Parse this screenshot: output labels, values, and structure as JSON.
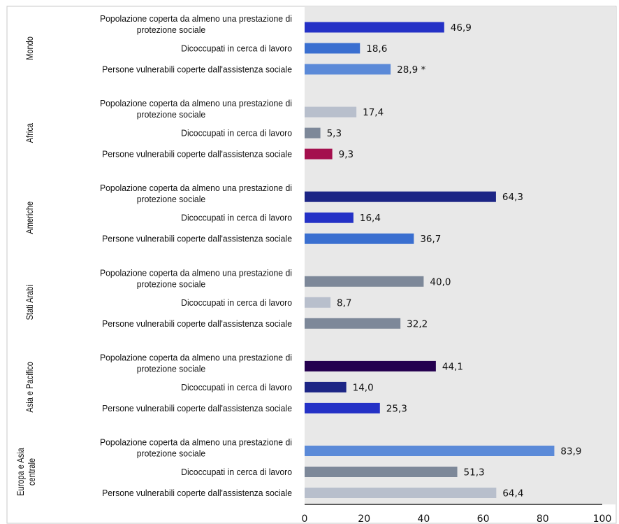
{
  "chart_data": {
    "type": "bar",
    "orientation": "horizontal",
    "xlim": [
      0,
      100
    ],
    "x_ticks": [
      "0",
      "20",
      "40",
      "60",
      "80",
      "100"
    ],
    "legend": "none",
    "grid": false,
    "groups": [
      {
        "name": "Mondo",
        "bars": [
          {
            "category": [
              "Popolazione coperta da almeno una prestazione di",
              "protezione sociale"
            ],
            "value": 46.9,
            "label": "46,9",
            "color": "#2431c6"
          },
          {
            "category": [
              "Dicoccupati in cerca di lavoro"
            ],
            "value": 18.6,
            "label": "18,6",
            "color": "#3a6fd0"
          },
          {
            "category": [
              "Persone vulnerabili coperte dall'assistenza sociale"
            ],
            "value": 28.9,
            "label": "28,9 *",
            "color": "#5b8ad8"
          }
        ]
      },
      {
        "name": "Africa",
        "bars": [
          {
            "category": [
              "Popolazione coperta da almeno una prestazione di",
              "protezione sociale"
            ],
            "value": 17.4,
            "label": "17,4",
            "color": "#b8bfcc"
          },
          {
            "category": [
              "Dicoccupati in cerca di lavoro"
            ],
            "value": 5.3,
            "label": "5,3",
            "color": "#7d8899"
          },
          {
            "category": [
              "Persone vulnerabili coperte dall'assistenza sociale"
            ],
            "value": 9.3,
            "label": "9,3",
            "color": "#a4104e"
          }
        ]
      },
      {
        "name": "Americhe",
        "bars": [
          {
            "category": [
              "Popolazione coperta da almeno una prestazione di",
              "protezione sociale"
            ],
            "value": 64.3,
            "label": "64,3",
            "color": "#1c2585"
          },
          {
            "category": [
              "Dicoccupati in cerca di lavoro"
            ],
            "value": 16.4,
            "label": "16,4",
            "color": "#2431c6"
          },
          {
            "category": [
              "Persone vulnerabili coperte dall'assistenza sociale"
            ],
            "value": 36.7,
            "label": "36,7",
            "color": "#3a6fd0"
          }
        ]
      },
      {
        "name": "Stati Arabi",
        "bars": [
          {
            "category": [
              "Popolazione coperta da almeno una prestazione di",
              "protezione sociale"
            ],
            "value": 40.0,
            "label": "40,0",
            "color": "#7d8899"
          },
          {
            "category": [
              "Dicoccupati in cerca di lavoro"
            ],
            "value": 8.7,
            "label": "8,7",
            "color": "#b8bfcc"
          },
          {
            "category": [
              "Persone vulnerabili coperte dall'assistenza sociale"
            ],
            "value": 32.2,
            "label": "32,2",
            "color": "#7d8899"
          }
        ]
      },
      {
        "name": "Asia e Pacifico",
        "bars": [
          {
            "category": [
              "Popolazione coperta da almeno una prestazione di",
              "protezione sociale"
            ],
            "value": 44.1,
            "label": "44,1",
            "color": "#24004f"
          },
          {
            "category": [
              "Dicoccupati in cerca di lavoro"
            ],
            "value": 14.0,
            "label": "14,0",
            "color": "#1c2585"
          },
          {
            "category": [
              "Persone vulnerabili coperte dall'assistenza sociale"
            ],
            "value": 25.3,
            "label": "25,3",
            "color": "#2431c6"
          }
        ]
      },
      {
        "name": "Europa e Asia centrale",
        "name_lines": [
          "Europa e Asia",
          "centrale"
        ],
        "bars": [
          {
            "category": [
              "Popolazione coperta da almeno una prestazione di",
              "protezione sociale"
            ],
            "value": 83.9,
            "label": "83,9",
            "color": "#5b8ad8"
          },
          {
            "category": [
              "Dicoccupati in cerca di lavoro"
            ],
            "value": 51.3,
            "label": "51,3",
            "color": "#7d8899"
          },
          {
            "category": [
              "Persone vulnerabili coperte dall'assistenza sociale"
            ],
            "value": 64.4,
            "label": "64,4",
            "color": "#b8bfcc"
          }
        ]
      }
    ]
  }
}
